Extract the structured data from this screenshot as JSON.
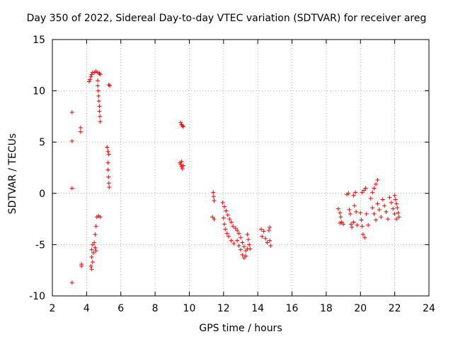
{
  "chart_data": {
    "type": "scatter",
    "title": "Day 350 of 2022, Sidereal Day-to-day VTEC variation (SDTVAR) for receiver areg",
    "xlabel": "GPS time / hours",
    "ylabel": "SDTVAR / TECUs",
    "xlim": [
      2,
      24
    ],
    "ylim": [
      -10,
      15
    ],
    "xticks": [
      2,
      4,
      6,
      8,
      10,
      12,
      14,
      16,
      18,
      20,
      22,
      24
    ],
    "yticks": [
      -10,
      -5,
      0,
      5,
      10,
      15
    ],
    "grid": true,
    "marker": "+",
    "color": "#ff0000",
    "points": [
      [
        3.15,
        7.9
      ],
      [
        3.15,
        5.1
      ],
      [
        3.15,
        0.5
      ],
      [
        3.15,
        -8.7
      ],
      [
        3.65,
        6.4
      ],
      [
        3.65,
        6.0
      ],
      [
        3.7,
        -6.9
      ],
      [
        3.7,
        -7.1
      ],
      [
        4.15,
        10.9
      ],
      [
        4.2,
        11.1
      ],
      [
        4.25,
        11.4
      ],
      [
        4.3,
        11.6
      ],
      [
        4.35,
        11.8
      ],
      [
        4.45,
        11.8
      ],
      [
        4.55,
        11.9
      ],
      [
        4.65,
        11.8
      ],
      [
        4.75,
        11.7
      ],
      [
        4.8,
        11.6
      ],
      [
        4.65,
        11.0
      ],
      [
        4.65,
        10.5
      ],
      [
        4.68,
        10.0
      ],
      [
        4.7,
        9.5
      ],
      [
        4.72,
        9.0
      ],
      [
        4.75,
        8.5
      ],
      [
        4.75,
        8.0
      ],
      [
        4.78,
        7.5
      ],
      [
        4.8,
        7.0
      ],
      [
        5.3,
        10.6
      ],
      [
        5.35,
        10.5
      ],
      [
        5.2,
        4.5
      ],
      [
        5.25,
        4.1
      ],
      [
        5.3,
        3.8
      ],
      [
        5.25,
        3.0
      ],
      [
        5.25,
        2.3
      ],
      [
        5.28,
        1.6
      ],
      [
        5.3,
        1.0
      ],
      [
        5.32,
        0.6
      ],
      [
        4.6,
        -2.3
      ],
      [
        4.7,
        -2.2
      ],
      [
        4.8,
        -2.3
      ],
      [
        4.55,
        -3.2
      ],
      [
        4.5,
        -4.0
      ],
      [
        4.45,
        -4.8
      ],
      [
        4.35,
        -5.0
      ],
      [
        4.3,
        -5.5
      ],
      [
        4.4,
        -5.8
      ],
      [
        4.3,
        -6.2
      ],
      [
        4.35,
        -6.7
      ],
      [
        4.25,
        -7.1
      ],
      [
        4.3,
        -7.4
      ],
      [
        4.5,
        -5.3
      ],
      [
        4.55,
        -5.6
      ],
      [
        9.5,
        6.9
      ],
      [
        9.55,
        6.7
      ],
      [
        9.6,
        6.6
      ],
      [
        9.65,
        6.5
      ],
      [
        9.45,
        3.0
      ],
      [
        9.5,
        2.8
      ],
      [
        9.55,
        2.6
      ],
      [
        9.6,
        2.4
      ],
      [
        9.65,
        2.7
      ],
      [
        9.55,
        3.1
      ],
      [
        11.4,
        0.1
      ],
      [
        11.42,
        -0.3
      ],
      [
        11.45,
        -0.7
      ],
      [
        11.35,
        -2.3
      ],
      [
        11.45,
        -2.5
      ],
      [
        11.95,
        -0.9
      ],
      [
        12.05,
        -1.3
      ],
      [
        12.15,
        -1.7
      ],
      [
        12.25,
        -2.1
      ],
      [
        12.35,
        -2.5
      ],
      [
        12.45,
        -2.8
      ],
      [
        12.55,
        -3.2
      ],
      [
        12.0,
        -2.4
      ],
      [
        12.05,
        -3.0
      ],
      [
        12.1,
        -3.5
      ],
      [
        12.2,
        -3.9
      ],
      [
        12.3,
        -4.2
      ],
      [
        12.45,
        -4.6
      ],
      [
        12.6,
        -4.9
      ],
      [
        12.7,
        -3.4
      ],
      [
        12.8,
        -3.6
      ],
      [
        12.9,
        -3.9
      ],
      [
        13.0,
        -4.3
      ],
      [
        13.1,
        -4.8
      ],
      [
        13.2,
        -5.2
      ],
      [
        13.3,
        -5.6
      ],
      [
        12.8,
        -4.6
      ],
      [
        12.9,
        -5.1
      ],
      [
        13.0,
        -5.5
      ],
      [
        13.1,
        -6.0
      ],
      [
        13.2,
        -6.3
      ],
      [
        13.3,
        -6.1
      ],
      [
        13.4,
        -5.4
      ],
      [
        13.4,
        -4.0
      ],
      [
        13.45,
        -4.5
      ],
      [
        13.5,
        -5.0
      ],
      [
        13.55,
        -5.4
      ],
      [
        14.2,
        -3.5
      ],
      [
        14.25,
        -4.2
      ],
      [
        14.35,
        -3.7
      ],
      [
        14.45,
        -4.4
      ],
      [
        14.55,
        -4.8
      ],
      [
        14.65,
        -3.6
      ],
      [
        14.7,
        -3.3
      ],
      [
        14.7,
        -4.6
      ],
      [
        14.75,
        -5.1
      ],
      [
        18.7,
        -1.5
      ],
      [
        18.8,
        -1.9
      ],
      [
        18.85,
        -2.3
      ],
      [
        18.9,
        -2.8
      ],
      [
        18.8,
        -2.9
      ],
      [
        19.0,
        -3.0
      ],
      [
        19.2,
        -0.1
      ],
      [
        19.3,
        0.0
      ],
      [
        19.35,
        -1.6
      ],
      [
        19.4,
        -2.0
      ],
      [
        19.45,
        -3.0
      ],
      [
        19.5,
        -3.3
      ],
      [
        19.6,
        -2.8
      ],
      [
        19.6,
        -0.2
      ],
      [
        19.7,
        0.1
      ],
      [
        19.65,
        -1.2
      ],
      [
        19.75,
        -1.8
      ],
      [
        19.8,
        -3.1
      ],
      [
        20.0,
        -1.9
      ],
      [
        20.05,
        -2.6
      ],
      [
        20.1,
        -3.2
      ],
      [
        20.15,
        -4.0
      ],
      [
        20.25,
        -4.3
      ],
      [
        20.1,
        0.1
      ],
      [
        20.2,
        0.3
      ],
      [
        20.3,
        0.5
      ],
      [
        20.35,
        -2.0
      ],
      [
        20.45,
        -3.1
      ],
      [
        20.6,
        -0.5
      ],
      [
        20.7,
        0.1
      ],
      [
        20.8,
        0.5
      ],
      [
        20.9,
        0.9
      ],
      [
        21.0,
        1.3
      ],
      [
        20.7,
        -1.4
      ],
      [
        20.8,
        -2.0
      ],
      [
        20.9,
        -2.6
      ],
      [
        21.0,
        -1.0
      ],
      [
        21.1,
        -1.6
      ],
      [
        21.2,
        -2.3
      ],
      [
        21.3,
        -0.6
      ],
      [
        21.4,
        -1.2
      ],
      [
        21.5,
        -1.8
      ],
      [
        21.6,
        -2.5
      ],
      [
        21.7,
        -0.4
      ],
      [
        21.8,
        -0.9
      ],
      [
        21.9,
        -1.5
      ],
      [
        22.0,
        -2.0
      ],
      [
        22.1,
        -2.5
      ],
      [
        22.0,
        -0.2
      ],
      [
        22.05,
        -0.6
      ],
      [
        22.1,
        -1.0
      ],
      [
        22.15,
        -1.4
      ],
      [
        22.2,
        -1.9
      ],
      [
        22.25,
        -2.3
      ]
    ]
  }
}
